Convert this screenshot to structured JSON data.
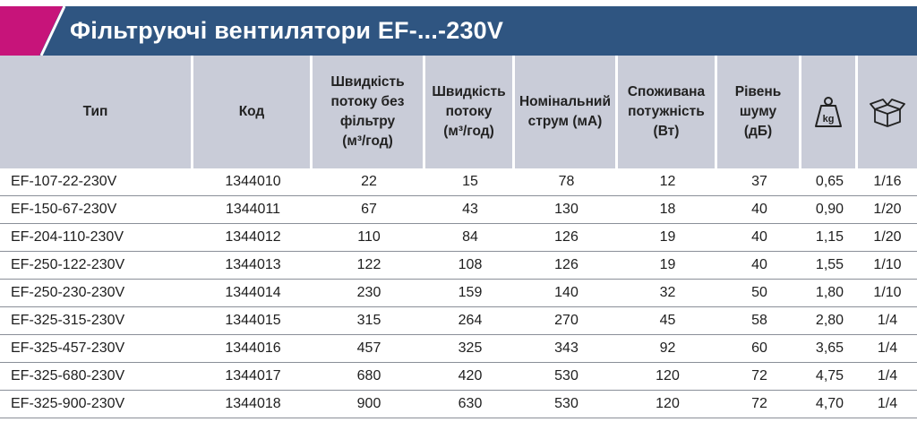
{
  "title": "Фільтруючі вентилятори EF-...-230V",
  "colors": {
    "title_bg": "#2f5581",
    "accent": "#c7147a",
    "header_bg": "#c9ccd8"
  },
  "header": {
    "type": "Тип",
    "code": "Код",
    "flow_no_filter": "Швидкість\nпотоку без\nфільтру\n(м³/год)",
    "flow": "Швидкість\nпотоку\n(м³/год)",
    "current": "Номінальний\nструм (мА)",
    "power": "Споживана\nпотужність\n(Вт)",
    "noise": "Рівень\nшуму\n(дБ)",
    "weight_icon": "weight-kg-icon",
    "weight_icon_label": "kg",
    "package_icon": "box-icon"
  },
  "rows": [
    {
      "type": "EF-107-22-230V",
      "code": "1344010",
      "flow_no_filter": "22",
      "flow": "15",
      "current": "78",
      "power": "12",
      "noise": "37",
      "weight": "0,65",
      "pack": "1/16"
    },
    {
      "type": "EF-150-67-230V",
      "code": "1344011",
      "flow_no_filter": "67",
      "flow": "43",
      "current": "130",
      "power": "18",
      "noise": "40",
      "weight": "0,90",
      "pack": "1/20"
    },
    {
      "type": "EF-204-110-230V",
      "code": "1344012",
      "flow_no_filter": "110",
      "flow": "84",
      "current": "126",
      "power": "19",
      "noise": "40",
      "weight": "1,15",
      "pack": "1/20"
    },
    {
      "type": "EF-250-122-230V",
      "code": "1344013",
      "flow_no_filter": "122",
      "flow": "108",
      "current": "126",
      "power": "19",
      "noise": "40",
      "weight": "1,55",
      "pack": "1/10"
    },
    {
      "type": "EF-250-230-230V",
      "code": "1344014",
      "flow_no_filter": "230",
      "flow": "159",
      "current": "140",
      "power": "32",
      "noise": "50",
      "weight": "1,80",
      "pack": "1/10"
    },
    {
      "type": "EF-325-315-230V",
      "code": "1344015",
      "flow_no_filter": "315",
      "flow": "264",
      "current": "270",
      "power": "45",
      "noise": "58",
      "weight": "2,80",
      "pack": "1/4"
    },
    {
      "type": "EF-325-457-230V",
      "code": "1344016",
      "flow_no_filter": "457",
      "flow": "325",
      "current": "343",
      "power": "92",
      "noise": "60",
      "weight": "3,65",
      "pack": "1/4"
    },
    {
      "type": "EF-325-680-230V",
      "code": "1344017",
      "flow_no_filter": "680",
      "flow": "420",
      "current": "530",
      "power": "120",
      "noise": "72",
      "weight": "4,75",
      "pack": "1/4"
    },
    {
      "type": "EF-325-900-230V",
      "code": "1344018",
      "flow_no_filter": "900",
      "flow": "630",
      "current": "530",
      "power": "120",
      "noise": "72",
      "weight": "4,70",
      "pack": "1/4"
    }
  ]
}
